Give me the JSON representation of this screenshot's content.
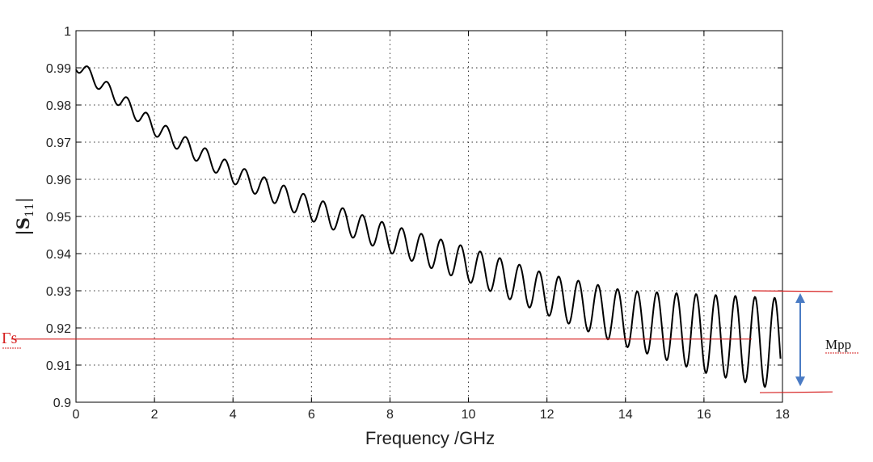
{
  "chart_data": {
    "type": "line",
    "xlabel": "Frequency /GHz",
    "ylabel": "|S11|",
    "xlim": [
      0,
      18
    ],
    "ylim": [
      0.9,
      1.0
    ],
    "xticks": [
      0,
      2,
      4,
      6,
      8,
      10,
      12,
      14,
      16,
      18
    ],
    "yticks": [
      0.9,
      0.91,
      0.92,
      0.93,
      0.94,
      0.95,
      0.96,
      0.97,
      0.98,
      0.99,
      1
    ],
    "ytick_labels": [
      "0.9",
      "0.91",
      "0.92",
      "0.93",
      "0.94",
      "0.95",
      "0.96",
      "0.97",
      "0.98",
      "0.99",
      "1"
    ],
    "grid": "dotted",
    "series": [
      {
        "color": "#000000",
        "description_of_shape": "oscillating ripple about a decaying baseline",
        "baseline": {
          "x": [
            0,
            2,
            4,
            6,
            8,
            10,
            12,
            14,
            16,
            18
          ],
          "y": [
            0.991,
            0.974,
            0.9615,
            0.952,
            0.944,
            0.937,
            0.929,
            0.9225,
            0.9185,
            0.9155
          ]
        },
        "ripple_amplitude": {
          "x": [
            0,
            4,
            8,
            12,
            14,
            16,
            18
          ],
          "y": [
            0.0018,
            0.0026,
            0.0038,
            0.0055,
            0.0075,
            0.0105,
            0.0125
          ]
        },
        "ripple_period_ghz": 0.5,
        "x_end": 17.95
      }
    ],
    "annotations": {
      "gamma_label": "Γs",
      "gamma_level": 0.917,
      "gamma_color": "#d62020",
      "upper_line_level": 0.93,
      "lower_line_level": 0.903,
      "line_color": "#d62020",
      "arrow_color": "#4a7bc4",
      "arrow_label": "Mpp"
    }
  }
}
